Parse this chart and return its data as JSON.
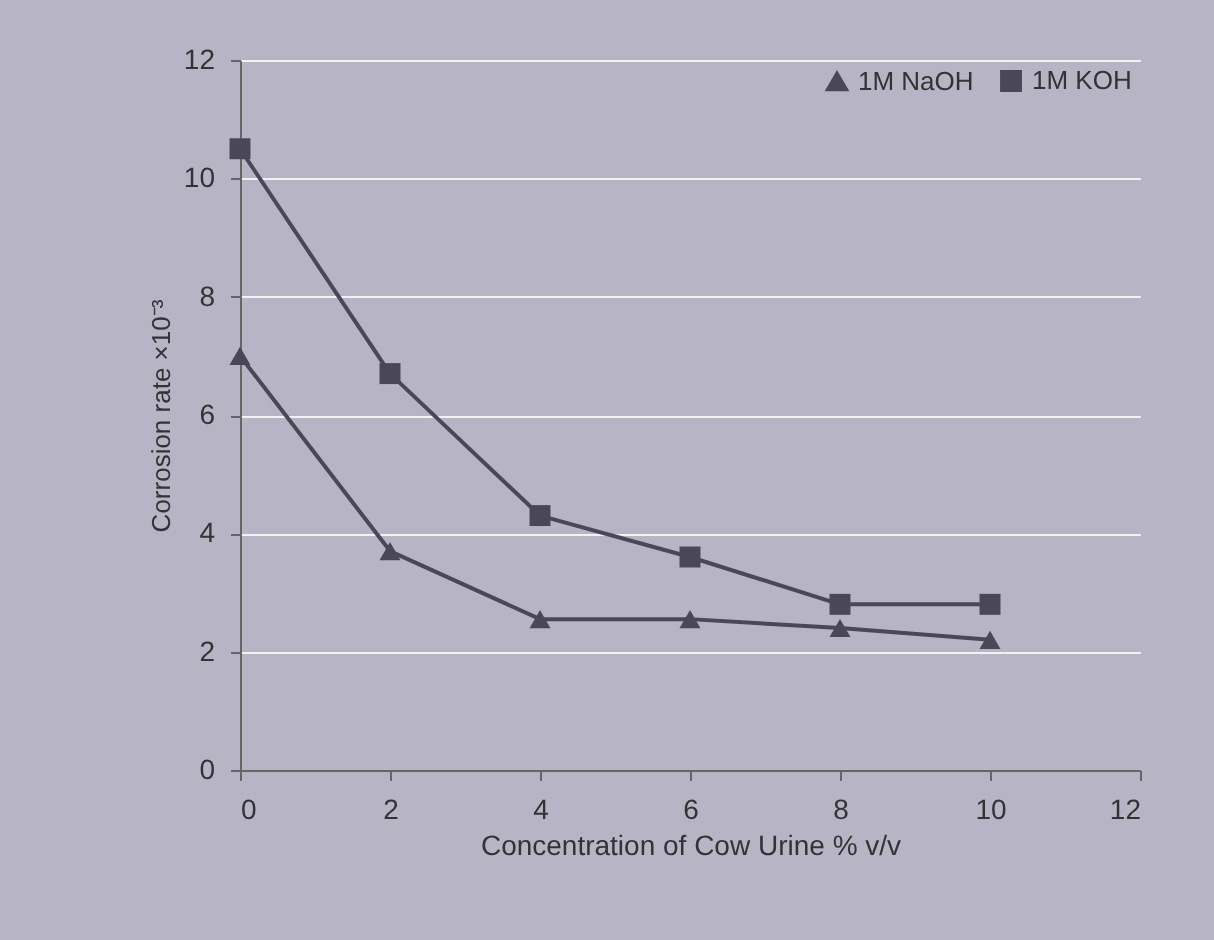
{
  "chart_data": {
    "type": "line",
    "xlabel": "Concentration of Cow Urine % v/v",
    "ylabel": "Corrosion rate ×10⁻³",
    "x": [
      0,
      2,
      4,
      6,
      8,
      10
    ],
    "series": [
      {
        "name": "1M NaOH",
        "color": "#4a4858",
        "marker": "triangle",
        "values": [
          7.0,
          3.7,
          2.55,
          2.55,
          2.4,
          2.2
        ]
      },
      {
        "name": "1M KOH",
        "color": "#4a4858",
        "marker": "square",
        "values": [
          10.5,
          6.7,
          4.3,
          3.6,
          2.8,
          2.8
        ]
      }
    ],
    "xlim": [
      0,
      12
    ],
    "xticks": [
      0,
      2,
      4,
      6,
      8,
      10,
      12
    ],
    "ylim": [
      0,
      12
    ],
    "yticks": [
      0,
      2,
      4,
      6,
      8,
      10,
      12
    ],
    "grid": "y",
    "legend": "top right",
    "line_style": "solid"
  }
}
